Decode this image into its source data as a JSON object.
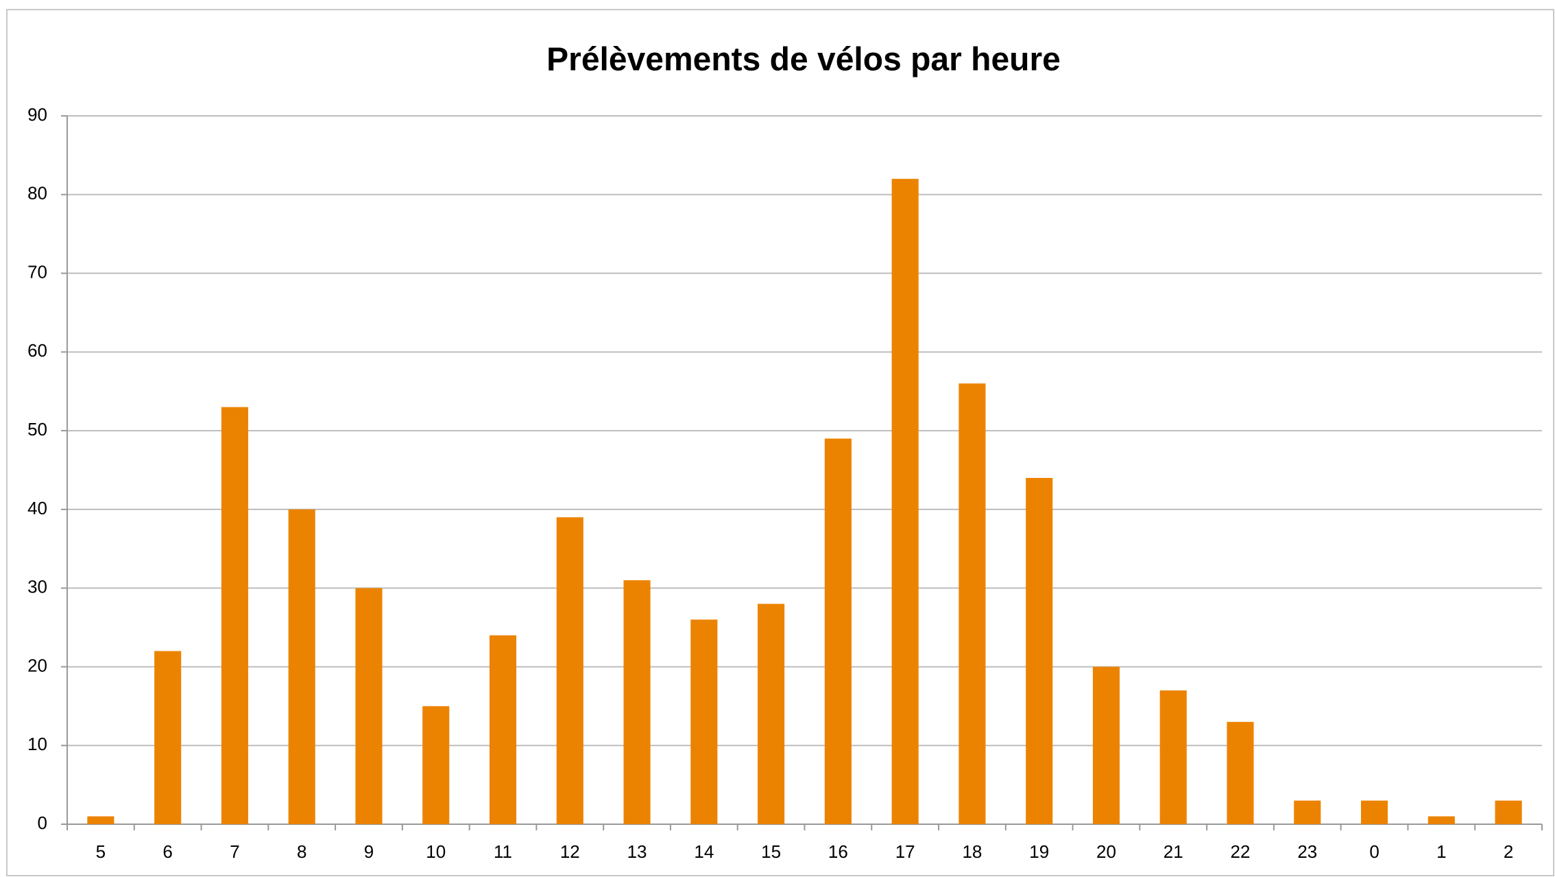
{
  "chart_data": {
    "type": "bar",
    "title": "Prélèvements de vélos par heure",
    "categories": [
      "5",
      "6",
      "7",
      "8",
      "9",
      "10",
      "11",
      "12",
      "13",
      "14",
      "15",
      "16",
      "17",
      "18",
      "19",
      "20",
      "21",
      "22",
      "23",
      "0",
      "1",
      "2"
    ],
    "values": [
      1,
      22,
      53,
      40,
      30,
      15,
      24,
      39,
      31,
      26,
      28,
      49,
      82,
      56,
      44,
      20,
      17,
      13,
      3,
      3,
      1,
      3
    ],
    "color": "#ec8300",
    "ylim": [
      0,
      90
    ],
    "yticks": [
      0,
      10,
      20,
      30,
      40,
      50,
      60,
      70,
      80,
      90
    ],
    "grid": true
  }
}
